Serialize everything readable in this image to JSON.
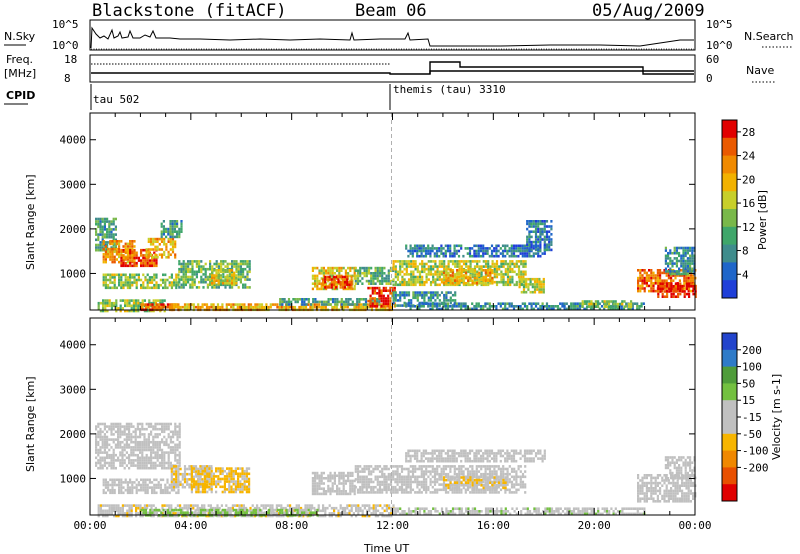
{
  "header": {
    "station": "Blackstone (fitACF)",
    "beam": "Beam 06",
    "date": "05/Aug/2009"
  },
  "top_panels": {
    "nsky_label": "N.Sky",
    "nsky_ticks": [
      "10^5",
      "10^0"
    ],
    "nsearch_label": "N.Search",
    "nsearch_ticks": [
      "10^5",
      "10^0"
    ],
    "freq_label": "Freq.",
    "freq_unit": "[MHz]",
    "freq_ticks": [
      "18",
      "8"
    ],
    "nave_label": "Nave",
    "nave_ticks": [
      "60",
      "0"
    ],
    "cpid_label": "CPID",
    "cpid_modes": [
      {
        "name": "tau 502",
        "start_hour": 0
      },
      {
        "name": "themis (tau) 3310",
        "start_hour": 12
      }
    ]
  },
  "colors": {
    "power_scale": [
      "#1f3fd8",
      "#1f66c9",
      "#3f8c8c",
      "#3fa66a",
      "#79b84a",
      "#c7cf2a",
      "#f2b200",
      "#f08a00",
      "#ea5a00",
      "#e10000"
    ],
    "velocity_scale": [
      "#2244cc",
      "#2f7bc8",
      "#4f9c3a",
      "#73c040",
      "#c0c0c0",
      "#c0c0c0",
      "#f7b500",
      "#f08800",
      "#e85000",
      "#e00000"
    ],
    "dashed_line": "#b0b0b0"
  },
  "chart_data": [
    {
      "type": "heatmap",
      "panel": "power",
      "xlabel": "",
      "ylabel": "Slant Range [km]",
      "xlim": [
        0,
        24
      ],
      "ylim": [
        180,
        4600
      ],
      "y_ticks": [
        "1000",
        "2000",
        "3000",
        "4000"
      ],
      "colorbar_label": "Power [dB]",
      "colorbar_ticks": [
        "4",
        "8",
        "12",
        "16",
        "20",
        "24",
        "28"
      ],
      "colorbar_range": [
        0,
        30
      ],
      "regions": [
        {
          "t": [
            0.2,
            1.0
          ],
          "r": [
            1500,
            2250
          ],
          "v": 10
        },
        {
          "t": [
            0.5,
            1.8
          ],
          "r": [
            1250,
            1750
          ],
          "v": 22
        },
        {
          "t": [
            1.2,
            2.6
          ],
          "r": [
            1150,
            1550
          ],
          "v": 25
        },
        {
          "t": [
            2.2,
            3.4
          ],
          "r": [
            1350,
            1800
          ],
          "v": 20
        },
        {
          "t": [
            2.8,
            3.6
          ],
          "r": [
            1800,
            2200
          ],
          "v": 10
        },
        {
          "t": [
            0.5,
            3.5
          ],
          "r": [
            650,
            1000
          ],
          "v": 14
        },
        {
          "t": [
            3.5,
            6.3
          ],
          "r": [
            700,
            1300
          ],
          "v": 12
        },
        {
          "t": [
            4.8,
            5.8
          ],
          "r": [
            780,
            1100
          ],
          "v": 18
        },
        {
          "t": [
            0.3,
            3.0
          ],
          "r": [
            180,
            420
          ],
          "v": 14
        },
        {
          "t": [
            2.0,
            3.5
          ],
          "r": [
            200,
            330
          ],
          "v": 26
        },
        {
          "t": [
            3.2,
            12.0
          ],
          "r": [
            180,
            330
          ],
          "v": 20
        },
        {
          "t": [
            7.5,
            11.5
          ],
          "r": [
            300,
            450
          ],
          "v": 10
        },
        {
          "t": [
            8.8,
            10.5
          ],
          "r": [
            650,
            1150
          ],
          "v": 18
        },
        {
          "t": [
            9.2,
            10.4
          ],
          "r": [
            700,
            950
          ],
          "v": 26
        },
        {
          "t": [
            10.5,
            12.0
          ],
          "r": [
            750,
            1150
          ],
          "v": 12
        },
        {
          "t": [
            11.0,
            12.1
          ],
          "r": [
            280,
            700
          ],
          "v": 27
        },
        {
          "t": [
            12.0,
            14.5
          ],
          "r": [
            300,
            600
          ],
          "v": 8
        },
        {
          "t": [
            12.0,
            17.3
          ],
          "r": [
            750,
            1300
          ],
          "v": 16
        },
        {
          "t": [
            14.0,
            16.0
          ],
          "r": [
            800,
            1100
          ],
          "v": 20
        },
        {
          "t": [
            17.0,
            18.0
          ],
          "r": [
            600,
            900
          ],
          "v": 16
        },
        {
          "t": [
            12.5,
            18.0
          ],
          "r": [
            1400,
            1650
          ],
          "v": 6
        },
        {
          "t": [
            17.3,
            18.3
          ],
          "r": [
            1500,
            2200
          ],
          "v": 6
        },
        {
          "t": [
            12.5,
            22.0
          ],
          "r": [
            180,
            350
          ],
          "v": 8
        },
        {
          "t": [
            19.5,
            21.5
          ],
          "r": [
            250,
            400
          ],
          "v": 14
        },
        {
          "t": [
            21.7,
            24.0
          ],
          "r": [
            600,
            1100
          ],
          "v": 24
        },
        {
          "t": [
            22.5,
            24.0
          ],
          "r": [
            500,
            800
          ],
          "v": 28
        },
        {
          "t": [
            22.8,
            24.0
          ],
          "r": [
            1000,
            1600
          ],
          "v": 8
        }
      ]
    },
    {
      "type": "heatmap",
      "panel": "velocity",
      "xlabel": "Time UT",
      "ylabel": "Slant Range [km]",
      "xlim": [
        0,
        24
      ],
      "ylim": [
        180,
        4600
      ],
      "x_ticks": [
        "00:00",
        "04:00",
        "08:00",
        "12:00",
        "16:00",
        "20:00",
        "00:00"
      ],
      "y_ticks": [
        "1000",
        "2000",
        "3000",
        "4000"
      ],
      "colorbar_label": "Velocity [m s-1]",
      "colorbar_ticks": [
        "200",
        "100",
        "50",
        "15",
        "-15",
        "-50",
        "-100",
        "-200"
      ],
      "colorbar_range": [
        -250,
        250
      ],
      "regions": [
        {
          "t": [
            0.2,
            3.6
          ],
          "r": [
            1200,
            2250
          ],
          "v": 0
        },
        {
          "t": [
            0.5,
            3.5
          ],
          "r": [
            650,
            1000
          ],
          "v": 0
        },
        {
          "t": [
            3.2,
            4.8
          ],
          "r": [
            800,
            1300
          ],
          "v": -40
        },
        {
          "t": [
            4.0,
            6.3
          ],
          "r": [
            700,
            1250
          ],
          "v": -60
        },
        {
          "t": [
            0.3,
            12.0
          ],
          "r": [
            180,
            420
          ],
          "v": -30
        },
        {
          "t": [
            2.0,
            9.0
          ],
          "r": [
            200,
            320
          ],
          "v": 60
        },
        {
          "t": [
            8.8,
            10.5
          ],
          "r": [
            650,
            1150
          ],
          "v": 0
        },
        {
          "t": [
            10.5,
            17.3
          ],
          "r": [
            700,
            1300
          ],
          "v": 0
        },
        {
          "t": [
            14.0,
            16.5
          ],
          "r": [
            800,
            1050
          ],
          "v": -40
        },
        {
          "t": [
            12.0,
            22.0
          ],
          "r": [
            180,
            350
          ],
          "v": 30
        },
        {
          "t": [
            12.5,
            18.0
          ],
          "r": [
            1400,
            1650
          ],
          "v": 0
        },
        {
          "t": [
            21.7,
            24.0
          ],
          "r": [
            500,
            1100
          ],
          "v": 0
        },
        {
          "t": [
            22.8,
            24.0
          ],
          "r": [
            1000,
            1500
          ],
          "v": 0
        }
      ]
    }
  ]
}
